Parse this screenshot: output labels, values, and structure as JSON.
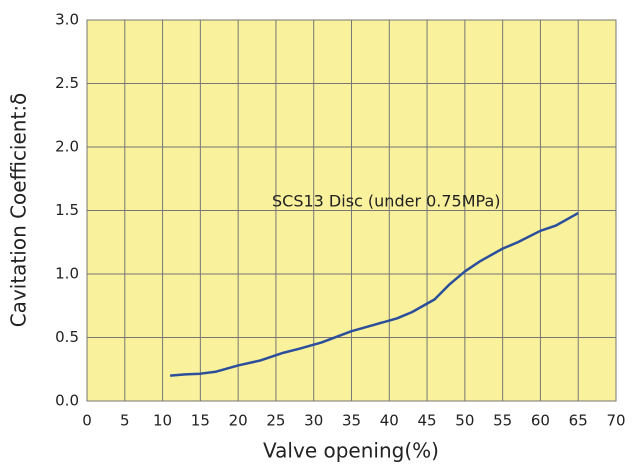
{
  "chart_data": {
    "type": "line",
    "xlabel": "Valve opening(%)",
    "ylabel": "Cavitation Coefficient:δ",
    "annotation": "SCS13 Disc (under 0.75MPa)",
    "xlim": [
      0,
      70
    ],
    "xticks": [
      0,
      5,
      10,
      15,
      20,
      25,
      30,
      35,
      40,
      45,
      50,
      55,
      60,
      65,
      70
    ],
    "ylim": [
      0,
      3
    ],
    "yticks": [
      {
        "value": 0,
        "label": "0.0"
      },
      {
        "value": 0.5,
        "label": "0.5"
      },
      {
        "value": 1,
        "label": "1.0"
      },
      {
        "value": 1.5,
        "label": "1.5"
      },
      {
        "value": 2,
        "label": "2.0"
      },
      {
        "value": 2.5,
        "label": "2.5"
      },
      {
        "value": 3,
        "label": "3.0"
      }
    ],
    "grid": true,
    "background": "#f9f19c",
    "series": [
      {
        "color": "#2b4f9a",
        "x": [
          11,
          13,
          15,
          17,
          20,
          23,
          26,
          28,
          31,
          35,
          38,
          41,
          43,
          46,
          48,
          50,
          52,
          55,
          57,
          60,
          62,
          65
        ],
        "values": [
          0.2,
          0.21,
          0.215,
          0.23,
          0.28,
          0.32,
          0.38,
          0.41,
          0.46,
          0.55,
          0.6,
          0.65,
          0.7,
          0.8,
          0.92,
          1.02,
          1.1,
          1.2,
          1.25,
          1.34,
          1.38,
          1.48
        ]
      }
    ]
  }
}
